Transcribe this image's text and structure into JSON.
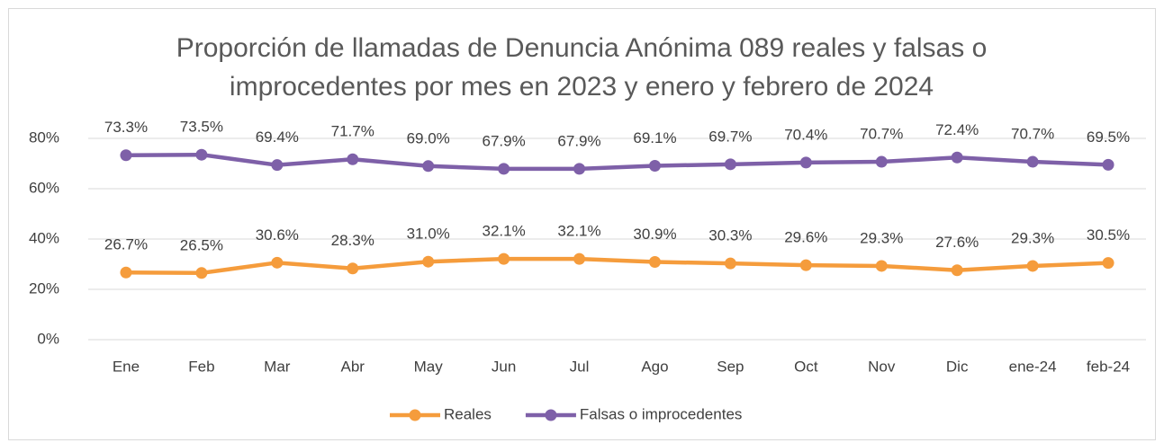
{
  "chart_data": {
    "type": "line",
    "title": "Proporción de llamadas de Denuncia Anónima 089 reales y falsas o improcedentes por mes en 2023 y enero y febrero de 2024",
    "categories": [
      "Ene",
      "Feb",
      "Mar",
      "Abr",
      "May",
      "Jun",
      "Jul",
      "Ago",
      "Sep",
      "Oct",
      "Nov",
      "Dic",
      "ene-24",
      "feb-24"
    ],
    "series": [
      {
        "name": "Reales",
        "color": "#f59c3c",
        "values": [
          26.7,
          26.5,
          30.6,
          28.3,
          31.0,
          32.1,
          32.1,
          30.9,
          30.3,
          29.6,
          29.3,
          27.6,
          29.3,
          30.5
        ],
        "value_labels": [
          "26.7%",
          "26.5%",
          "30.6%",
          "28.3%",
          "31.0%",
          "32.1%",
          "32.1%",
          "30.9%",
          "30.3%",
          "29.6%",
          "29.3%",
          "27.6%",
          "29.3%",
          "30.5%"
        ]
      },
      {
        "name": "Falsas o improcedentes",
        "color": "#7e60a8",
        "values": [
          73.3,
          73.5,
          69.4,
          71.7,
          69.0,
          67.9,
          67.9,
          69.1,
          69.7,
          70.4,
          70.7,
          72.4,
          70.7,
          69.5
        ],
        "value_labels": [
          "73.3%",
          "73.5%",
          "69.4%",
          "71.7%",
          "69.0%",
          "67.9%",
          "67.9%",
          "69.1%",
          "69.7%",
          "70.4%",
          "70.7%",
          "72.4%",
          "70.7%",
          "69.5%"
        ]
      }
    ],
    "ylim": [
      0,
      80
    ],
    "yticks": [
      {
        "value": 0,
        "label": "0%"
      },
      {
        "value": 20,
        "label": "20%"
      },
      {
        "value": 40,
        "label": "40%"
      },
      {
        "value": 60,
        "label": "60%"
      },
      {
        "value": 80,
        "label": "80%"
      }
    ],
    "grid": true,
    "legend": "bottom"
  }
}
